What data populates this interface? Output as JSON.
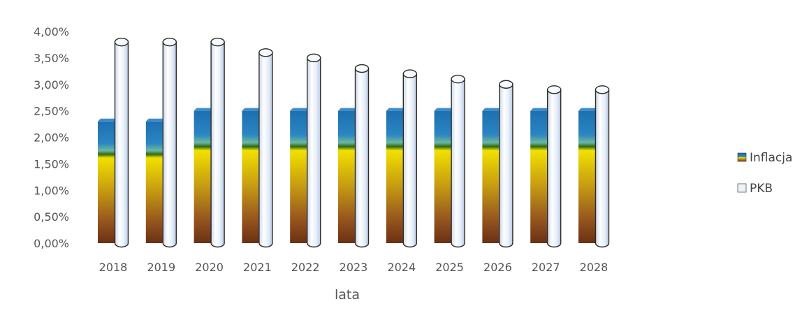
{
  "chart_data": {
    "type": "bar",
    "title": "",
    "xlabel": "lata",
    "ylabel": "",
    "ylim": [
      0,
      0.04
    ],
    "yticks": [
      "0,00%",
      "0,50%",
      "1,00%",
      "1,50%",
      "2,00%",
      "2,50%",
      "3,00%",
      "3,50%",
      "4,00%"
    ],
    "categories": [
      "2018",
      "2019",
      "2020",
      "2021",
      "2022",
      "2023",
      "2024",
      "2025",
      "2026",
      "2027",
      "2028"
    ],
    "series": [
      {
        "name": "Inflacja",
        "values": [
          0.023,
          0.023,
          0.025,
          0.025,
          0.025,
          0.025,
          0.025,
          0.025,
          0.025,
          0.025,
          0.025
        ]
      },
      {
        "name": "PKB",
        "values": [
          0.038,
          0.038,
          0.038,
          0.036,
          0.035,
          0.033,
          0.032,
          0.031,
          0.03,
          0.029,
          0.029
        ]
      }
    ],
    "legend_position": "right",
    "grid": false
  },
  "colors": {
    "inflacja_top": "#1e6fb0",
    "inflacja_mid": "#e8d400",
    "inflacja_bottom": "#7a3a1a",
    "pkb_fill": "#eef3fa",
    "pkb_stroke": "#2b2b2b"
  }
}
